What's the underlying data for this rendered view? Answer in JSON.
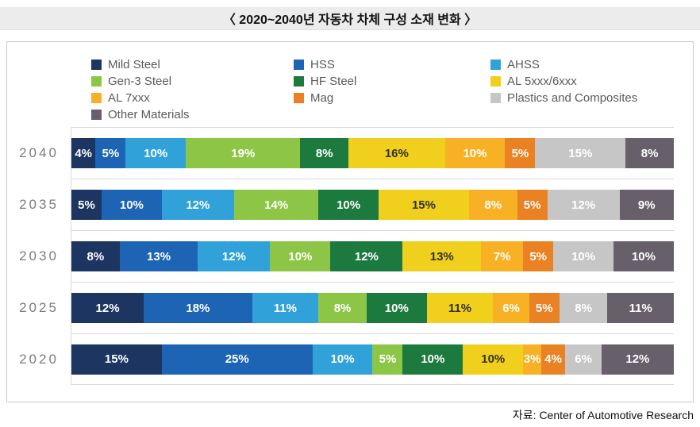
{
  "title": "〈 2020~2040년 자동차 차체 구성 소재 변화 〉",
  "source": "자료: Center of Automotive Research",
  "colors": {
    "panel_border": "#c9c9c9",
    "gridline": "#d9d9d9",
    "title_band_bg": "#ececec",
    "year_label": "#7c7c7c",
    "legend_text": "#5a5a5a"
  },
  "chart_data": {
    "type": "bar",
    "stacked": true,
    "orientation": "horizontal",
    "value_suffix": "%",
    "xlim": [
      0,
      100
    ],
    "legend_position": "top",
    "grid": "horizontal-band-separators",
    "categories": [
      "2040",
      "2035",
      "2030",
      "2025",
      "2020"
    ],
    "series": [
      {
        "name": "Mild Steel",
        "color": "#1c3561",
        "text_color": "#ffffff",
        "values": [
          4,
          5,
          8,
          12,
          15
        ]
      },
      {
        "name": "HSS",
        "color": "#1d64b5",
        "text_color": "#ffffff",
        "values": [
          5,
          10,
          13,
          18,
          25
        ]
      },
      {
        "name": "AHSS",
        "color": "#31a2d9",
        "text_color": "#ffffff",
        "values": [
          10,
          12,
          12,
          11,
          10
        ]
      },
      {
        "name": "Gen-3 Steel",
        "color": "#8dc646",
        "text_color": "#ffffff",
        "values": [
          19,
          14,
          10,
          8,
          5
        ]
      },
      {
        "name": "HF Steel",
        "color": "#1d7a3e",
        "text_color": "#ffffff",
        "values": [
          8,
          10,
          12,
          10,
          10
        ]
      },
      {
        "name": "AL 5xxx/6xxx",
        "color": "#f0d01d",
        "text_color": "#333222",
        "values": [
          16,
          15,
          13,
          11,
          10
        ]
      },
      {
        "name": "AL 7xxx",
        "color": "#f8b124",
        "text_color": "#ffffff",
        "values": [
          10,
          8,
          7,
          6,
          3
        ]
      },
      {
        "name": "Mag",
        "color": "#ea8122",
        "text_color": "#ffffff",
        "values": [
          5,
          5,
          5,
          5,
          4
        ]
      },
      {
        "name": "Plastics and Composites",
        "color": "#c7c6c7",
        "text_color": "#ffffff",
        "values": [
          15,
          12,
          10,
          8,
          6
        ]
      },
      {
        "name": "Other Materials",
        "color": "#67606a",
        "text_color": "#ffffff",
        "values": [
          8,
          9,
          10,
          11,
          12
        ]
      }
    ]
  }
}
